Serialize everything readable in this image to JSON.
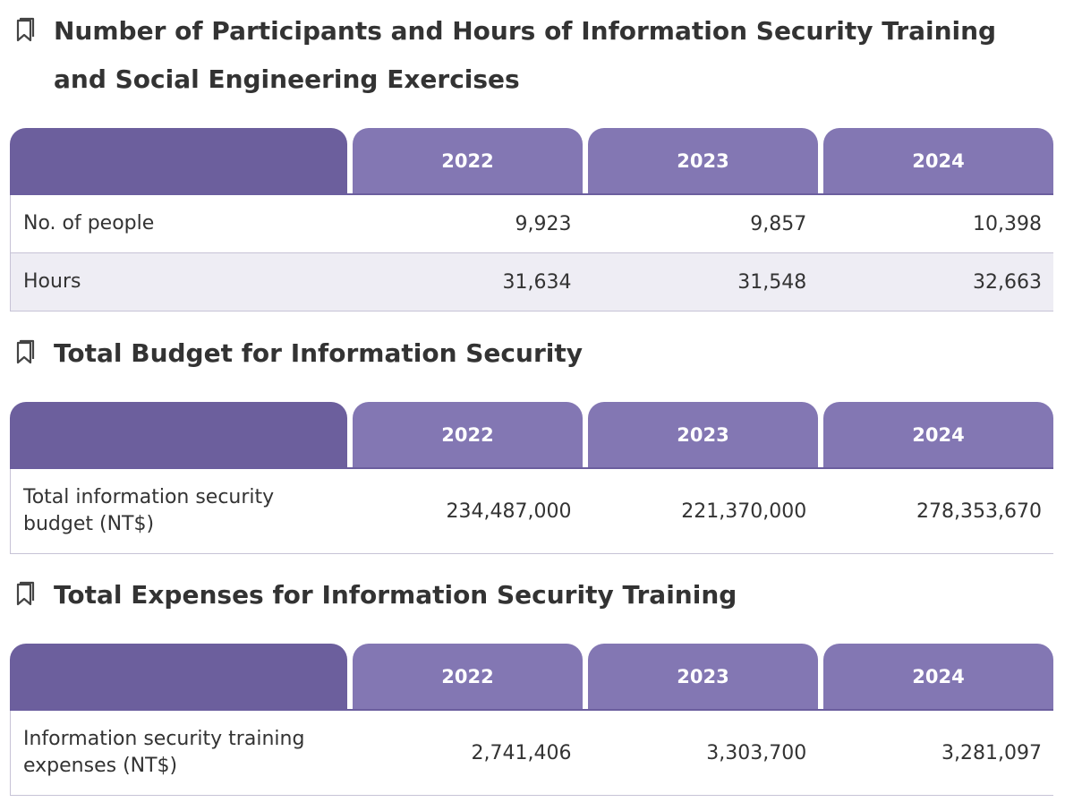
{
  "sections": [
    {
      "title": "Number of Participants and Hours of Information Security Training and Social Engineering Exercises",
      "header": {
        "corner": "",
        "years": [
          "2022",
          "2023",
          "2024"
        ]
      },
      "rows": [
        {
          "label": "No. of people",
          "values": [
            "9,923",
            "9,857",
            "10,398"
          ]
        },
        {
          "label": "Hours",
          "values": [
            "31,634",
            "31,548",
            "32,663"
          ]
        }
      ]
    },
    {
      "title": "Total Budget for Information Security",
      "header": {
        "corner": "",
        "years": [
          "2022",
          "2023",
          "2024"
        ]
      },
      "rows": [
        {
          "label": "Total information security budget (NT$)",
          "values": [
            "234,487,000",
            "221,370,000",
            "278,353,670"
          ]
        }
      ]
    },
    {
      "title": "Total Expenses for Information Security Training",
      "header": {
        "corner": "",
        "years": [
          "2022",
          "2023",
          "2024"
        ]
      },
      "rows": [
        {
          "label": "Information security training expenses (NT$)",
          "values": [
            "2,741,406",
            "3,303,700",
            "3,281,097"
          ]
        }
      ]
    }
  ],
  "icons": {
    "section_icon": "bookmark-icon"
  },
  "colors": {
    "header_corner": "#6c5f9d",
    "header_year": "#8377b3",
    "row_shade": "#eeedf4",
    "text": "#333333"
  }
}
